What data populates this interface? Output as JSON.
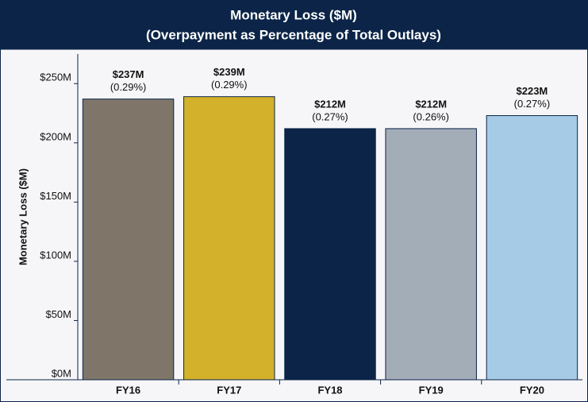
{
  "chart_data": {
    "type": "bar",
    "title": "Monetary Loss ($M)",
    "subtitle": "(Overpayment as Percentage of Total Outlays)",
    "y_label": "Monetary Loss ($M)",
    "categories": [
      "FY16",
      "FY17",
      "FY18",
      "FY19",
      "FY20"
    ],
    "values": [
      237,
      239,
      212,
      212,
      223
    ],
    "value_labels": [
      "$237M",
      "$239M",
      "$212M",
      "$212M",
      "$223M"
    ],
    "percent_labels": [
      "(0.29%)",
      "(0.29%)",
      "(0.27%)",
      "(0.26%)",
      "(0.27%)"
    ],
    "colors": [
      "#7f7669",
      "#d4b12b",
      "#0b2447",
      "#a3adb8",
      "#a6cbe6"
    ],
    "ylim": [
      0,
      275
    ],
    "yticks": [
      {
        "value": 0,
        "label": "$0M"
      },
      {
        "value": 50,
        "label": "$50M"
      },
      {
        "value": 100,
        "label": "$100M"
      },
      {
        "value": 150,
        "label": "$150M"
      },
      {
        "value": 200,
        "label": "$200M"
      },
      {
        "value": 250,
        "label": "$250M"
      }
    ]
  }
}
